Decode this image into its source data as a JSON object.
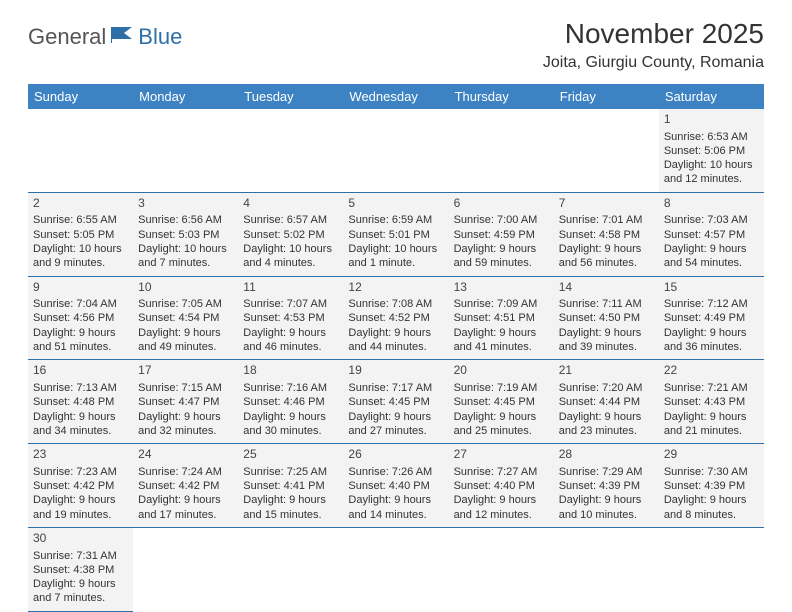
{
  "logo": {
    "general": "General",
    "blue": "Blue"
  },
  "title": "November 2025",
  "location": "Joita, Giurgiu County, Romania",
  "colors": {
    "header_bg": "#3d83c4",
    "header_text": "#ffffff",
    "row_border": "#2f6fa8",
    "cell_bg": "#f3f3f3",
    "text": "#333333",
    "logo_gray": "#555555",
    "logo_blue": "#2f6fa8",
    "background": "#ffffff"
  },
  "typography": {
    "title_fontsize": 28,
    "location_fontsize": 16,
    "dayhead_fontsize": 13,
    "cell_fontsize": 11,
    "logo_fontsize": 22
  },
  "dayheads": [
    "Sunday",
    "Monday",
    "Tuesday",
    "Wednesday",
    "Thursday",
    "Friday",
    "Saturday"
  ],
  "weeks": [
    [
      null,
      null,
      null,
      null,
      null,
      null,
      {
        "n": "1",
        "sr": "Sunrise: 6:53 AM",
        "ss": "Sunset: 5:06 PM",
        "dl": "Daylight: 10 hours and 12 minutes."
      }
    ],
    [
      {
        "n": "2",
        "sr": "Sunrise: 6:55 AM",
        "ss": "Sunset: 5:05 PM",
        "dl": "Daylight: 10 hours and 9 minutes."
      },
      {
        "n": "3",
        "sr": "Sunrise: 6:56 AM",
        "ss": "Sunset: 5:03 PM",
        "dl": "Daylight: 10 hours and 7 minutes."
      },
      {
        "n": "4",
        "sr": "Sunrise: 6:57 AM",
        "ss": "Sunset: 5:02 PM",
        "dl": "Daylight: 10 hours and 4 minutes."
      },
      {
        "n": "5",
        "sr": "Sunrise: 6:59 AM",
        "ss": "Sunset: 5:01 PM",
        "dl": "Daylight: 10 hours and 1 minute."
      },
      {
        "n": "6",
        "sr": "Sunrise: 7:00 AM",
        "ss": "Sunset: 4:59 PM",
        "dl": "Daylight: 9 hours and 59 minutes."
      },
      {
        "n": "7",
        "sr": "Sunrise: 7:01 AM",
        "ss": "Sunset: 4:58 PM",
        "dl": "Daylight: 9 hours and 56 minutes."
      },
      {
        "n": "8",
        "sr": "Sunrise: 7:03 AM",
        "ss": "Sunset: 4:57 PM",
        "dl": "Daylight: 9 hours and 54 minutes."
      }
    ],
    [
      {
        "n": "9",
        "sr": "Sunrise: 7:04 AM",
        "ss": "Sunset: 4:56 PM",
        "dl": "Daylight: 9 hours and 51 minutes."
      },
      {
        "n": "10",
        "sr": "Sunrise: 7:05 AM",
        "ss": "Sunset: 4:54 PM",
        "dl": "Daylight: 9 hours and 49 minutes."
      },
      {
        "n": "11",
        "sr": "Sunrise: 7:07 AM",
        "ss": "Sunset: 4:53 PM",
        "dl": "Daylight: 9 hours and 46 minutes."
      },
      {
        "n": "12",
        "sr": "Sunrise: 7:08 AM",
        "ss": "Sunset: 4:52 PM",
        "dl": "Daylight: 9 hours and 44 minutes."
      },
      {
        "n": "13",
        "sr": "Sunrise: 7:09 AM",
        "ss": "Sunset: 4:51 PM",
        "dl": "Daylight: 9 hours and 41 minutes."
      },
      {
        "n": "14",
        "sr": "Sunrise: 7:11 AM",
        "ss": "Sunset: 4:50 PM",
        "dl": "Daylight: 9 hours and 39 minutes."
      },
      {
        "n": "15",
        "sr": "Sunrise: 7:12 AM",
        "ss": "Sunset: 4:49 PM",
        "dl": "Daylight: 9 hours and 36 minutes."
      }
    ],
    [
      {
        "n": "16",
        "sr": "Sunrise: 7:13 AM",
        "ss": "Sunset: 4:48 PM",
        "dl": "Daylight: 9 hours and 34 minutes."
      },
      {
        "n": "17",
        "sr": "Sunrise: 7:15 AM",
        "ss": "Sunset: 4:47 PM",
        "dl": "Daylight: 9 hours and 32 minutes."
      },
      {
        "n": "18",
        "sr": "Sunrise: 7:16 AM",
        "ss": "Sunset: 4:46 PM",
        "dl": "Daylight: 9 hours and 30 minutes."
      },
      {
        "n": "19",
        "sr": "Sunrise: 7:17 AM",
        "ss": "Sunset: 4:45 PM",
        "dl": "Daylight: 9 hours and 27 minutes."
      },
      {
        "n": "20",
        "sr": "Sunrise: 7:19 AM",
        "ss": "Sunset: 4:45 PM",
        "dl": "Daylight: 9 hours and 25 minutes."
      },
      {
        "n": "21",
        "sr": "Sunrise: 7:20 AM",
        "ss": "Sunset: 4:44 PM",
        "dl": "Daylight: 9 hours and 23 minutes."
      },
      {
        "n": "22",
        "sr": "Sunrise: 7:21 AM",
        "ss": "Sunset: 4:43 PM",
        "dl": "Daylight: 9 hours and 21 minutes."
      }
    ],
    [
      {
        "n": "23",
        "sr": "Sunrise: 7:23 AM",
        "ss": "Sunset: 4:42 PM",
        "dl": "Daylight: 9 hours and 19 minutes."
      },
      {
        "n": "24",
        "sr": "Sunrise: 7:24 AM",
        "ss": "Sunset: 4:42 PM",
        "dl": "Daylight: 9 hours and 17 minutes."
      },
      {
        "n": "25",
        "sr": "Sunrise: 7:25 AM",
        "ss": "Sunset: 4:41 PM",
        "dl": "Daylight: 9 hours and 15 minutes."
      },
      {
        "n": "26",
        "sr": "Sunrise: 7:26 AM",
        "ss": "Sunset: 4:40 PM",
        "dl": "Daylight: 9 hours and 14 minutes."
      },
      {
        "n": "27",
        "sr": "Sunrise: 7:27 AM",
        "ss": "Sunset: 4:40 PM",
        "dl": "Daylight: 9 hours and 12 minutes."
      },
      {
        "n": "28",
        "sr": "Sunrise: 7:29 AM",
        "ss": "Sunset: 4:39 PM",
        "dl": "Daylight: 9 hours and 10 minutes."
      },
      {
        "n": "29",
        "sr": "Sunrise: 7:30 AM",
        "ss": "Sunset: 4:39 PM",
        "dl": "Daylight: 9 hours and 8 minutes."
      }
    ],
    [
      {
        "n": "30",
        "sr": "Sunrise: 7:31 AM",
        "ss": "Sunset: 4:38 PM",
        "dl": "Daylight: 9 hours and 7 minutes."
      },
      null,
      null,
      null,
      null,
      null,
      null
    ]
  ]
}
